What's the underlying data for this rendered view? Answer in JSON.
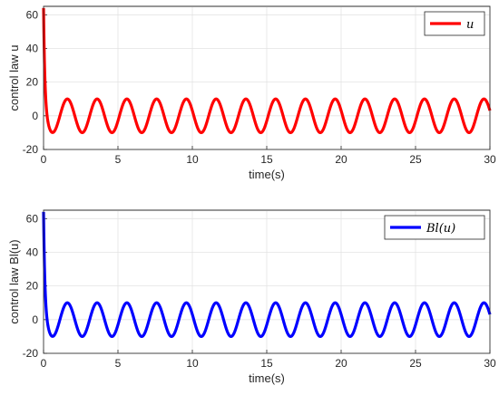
{
  "chart_data": [
    {
      "type": "line",
      "xlabel": "time(s)",
      "ylabel": "control law u",
      "xlim": [
        0,
        30
      ],
      "ylim": [
        -20,
        65
      ],
      "xticks": [
        "0",
        "5",
        "10",
        "15",
        "20",
        "25",
        "30"
      ],
      "yticks": [
        "-20",
        "0",
        "20",
        "40",
        "60"
      ],
      "grid": true,
      "legend_position": "top-right",
      "series": [
        {
          "name": "u",
          "color": "#ff0000",
          "description_values": {
            "initial": 64,
            "steady_amplitude": 10,
            "period_s": 2,
            "first_minimum_x": 0.6,
            "first_minimum_y": -11
          }
        }
      ]
    },
    {
      "type": "line",
      "xlabel": "time(s)",
      "ylabel": "control law Bl(u)",
      "xlim": [
        0,
        30
      ],
      "ylim": [
        -20,
        65
      ],
      "xticks": [
        "0",
        "5",
        "10",
        "15",
        "20",
        "25",
        "30"
      ],
      "yticks": [
        "-20",
        "0",
        "20",
        "40",
        "60"
      ],
      "grid": true,
      "legend_position": "top-right",
      "series": [
        {
          "name": "Bl(u)",
          "color": "#0000ff",
          "description_values": {
            "initial": 64,
            "steady_amplitude": 10,
            "period_s": 2,
            "first_minimum_x": 0.6,
            "first_minimum_y": -11
          }
        }
      ]
    }
  ]
}
